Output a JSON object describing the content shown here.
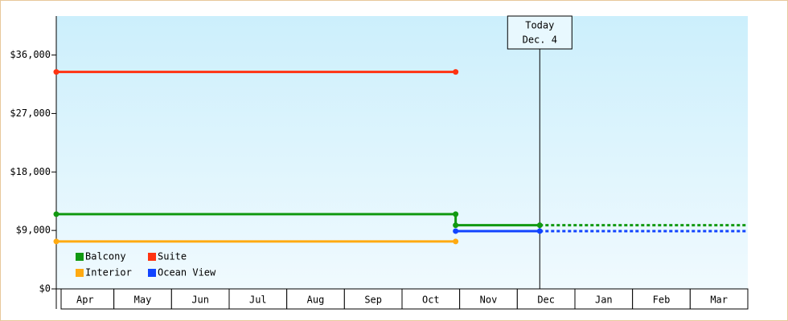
{
  "chart_data": {
    "type": "line",
    "categories": [
      "Apr",
      "May",
      "Jun",
      "Jul",
      "Aug",
      "Sep",
      "Oct",
      "Nov",
      "Dec",
      "Jan",
      "Feb",
      "Mar"
    ],
    "xlim": [
      0,
      12
    ],
    "ylim": [
      0,
      42000
    ],
    "yticks": [
      {
        "value": 0,
        "label": "$0"
      },
      {
        "value": 9000,
        "label": "$9,000"
      },
      {
        "value": 18000,
        "label": "$18,000"
      },
      {
        "value": 27000,
        "label": "$27,000"
      },
      {
        "value": 36000,
        "label": "$36,000"
      }
    ],
    "legend": "lower left",
    "today": {
      "x": 8.39,
      "label": [
        "Today",
        "Dec. 4"
      ]
    },
    "series": [
      {
        "name": "Balcony",
        "color": "#119911",
        "x": [
          0,
          6.93,
          6.93,
          8.39
        ],
        "values": [
          11500,
          11500,
          9800,
          9800
        ],
        "forecast_x": [
          8.39,
          12
        ],
        "forecast_values": [
          9800,
          9800
        ]
      },
      {
        "name": "Suite",
        "color": "#ff3311",
        "x": [
          0,
          6.93
        ],
        "values": [
          33400,
          33400
        ]
      },
      {
        "name": "Interior",
        "color": "#ffaa11",
        "x": [
          0,
          6.93
        ],
        "values": [
          7300,
          7300
        ]
      },
      {
        "name": "Ocean View",
        "color": "#1144ff",
        "x": [
          6.93,
          8.39
        ],
        "values": [
          8900,
          8900
        ],
        "forecast_x": [
          8.39,
          12
        ],
        "forecast_values": [
          8900,
          8900
        ]
      }
    ]
  }
}
